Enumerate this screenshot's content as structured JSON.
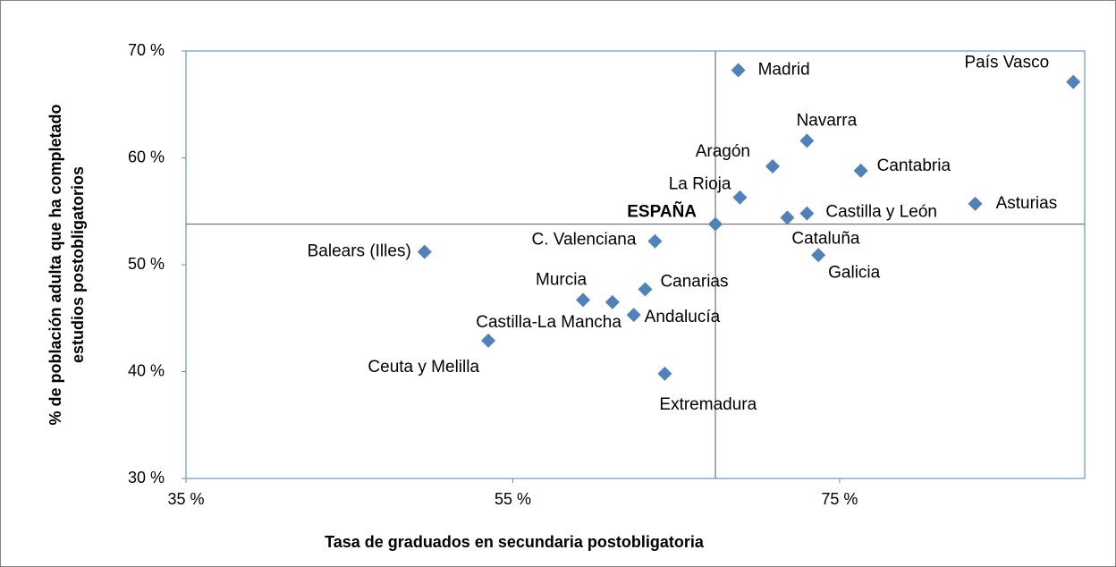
{
  "chart_data": {
    "type": "scatter",
    "xlabel": "Tasa de graduados en secundaria postobligatoria",
    "ylabel": [
      "% de población adulta que ha completado",
      "estudios postobligatorios"
    ],
    "color": "#4f81bd",
    "xlim": [
      35,
      90
    ],
    "ylim": [
      30,
      70
    ],
    "xticks": [
      {
        "value": 35,
        "label": "35 %"
      },
      {
        "value": 55,
        "label": "55 %"
      },
      {
        "value": 75,
        "label": "75 %"
      }
    ],
    "yticks": [
      {
        "value": 30,
        "label": "30 %"
      },
      {
        "value": 40,
        "label": "40 %"
      },
      {
        "value": 50,
        "label": "50 %"
      },
      {
        "value": 60,
        "label": "60 %"
      },
      {
        "value": 70,
        "label": "70 %"
      }
    ],
    "point_labels": [
      "Madrid",
      "País Vasco",
      "Navarra",
      "Aragón",
      "Cantabria",
      "La Rioja",
      "Asturias",
      "Castilla y León",
      "Cataluña",
      "ESPAÑA",
      "C. Valenciana",
      "Balears (Illes)",
      "Galicia",
      "Canarias",
      "Murcia",
      "Castilla-La Mancha",
      "Andalucía",
      "Ceuta y Melilla",
      "Extremadura"
    ],
    "x": [
      68.8,
      89.3,
      73.0,
      70.9,
      76.3,
      68.9,
      83.3,
      73.0,
      71.8,
      67.4,
      63.7,
      49.6,
      73.7,
      63.1,
      59.3,
      61.1,
      62.4,
      53.5,
      64.3
    ],
    "values": [
      68.2,
      67.1,
      61.6,
      59.2,
      58.8,
      56.3,
      55.7,
      54.8,
      54.4,
      53.8,
      52.2,
      51.2,
      50.9,
      47.7,
      46.7,
      46.5,
      45.3,
      42.9,
      39.8
    ]
  }
}
